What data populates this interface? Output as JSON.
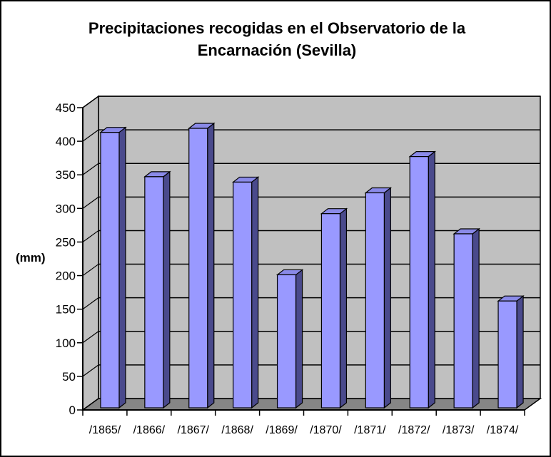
{
  "window": {
    "background": "#FFFFFF",
    "border_color": "#000000"
  },
  "chart_data": {
    "type": "bar",
    "style": "3d-column",
    "title": "Precipitaciones recogidas en el Observatorio de la Encarnación (Sevilla)",
    "ylabel": "(mm)",
    "xlabel": "",
    "categories": [
      "/1865/",
      "/1866/",
      "/1867/",
      "/1868/",
      "/1869/",
      "/1870/",
      "/1871/",
      "/1872/",
      "/1873/",
      "/1874/"
    ],
    "values": [
      410,
      344,
      416,
      336,
      198,
      289,
      320,
      374,
      259,
      159
    ],
    "ylim": [
      0,
      450
    ],
    "ytick_step": 50,
    "yticks": [
      0,
      50,
      100,
      150,
      200,
      250,
      300,
      350,
      400,
      450
    ],
    "grid": true,
    "legend": false,
    "colors": {
      "bar_front": "#9999FF",
      "bar_side": "#4A4A8C",
      "bar_top": "#8A8AE8",
      "wall": "#C0C0C0",
      "floor": "#868686",
      "line": "#000000",
      "text": "#000000"
    }
  }
}
